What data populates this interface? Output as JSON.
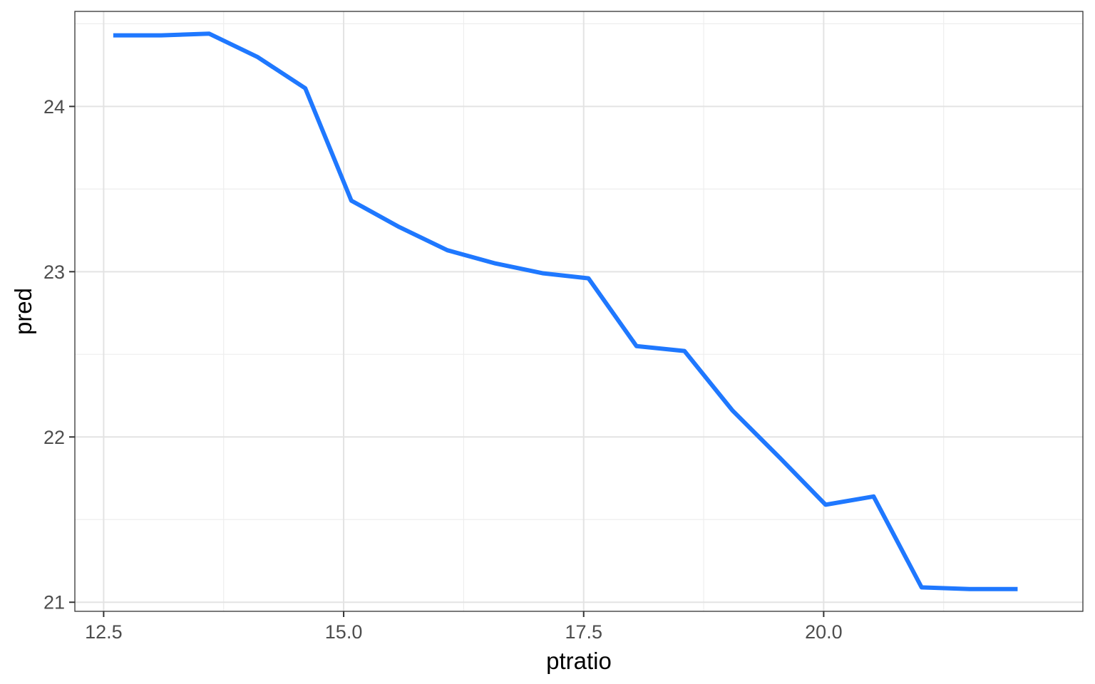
{
  "chart_data": {
    "type": "line",
    "title": "",
    "xlabel": "ptratio",
    "ylabel": "pred",
    "xlim": [
      12.2,
      22.7
    ],
    "ylim": [
      20.945,
      24.575
    ],
    "x_ticks": [
      12.5,
      15.0,
      17.5,
      20.0
    ],
    "x_tick_labels": [
      "12.5",
      "15.0",
      "17.5",
      "20.0"
    ],
    "x_minor_ticks": [
      13.75,
      16.25,
      18.75,
      21.25
    ],
    "y_ticks": [
      21,
      22,
      23,
      24
    ],
    "y_tick_labels": [
      "21",
      "22",
      "23",
      "24"
    ],
    "y_minor_ticks": [
      21.5,
      22.5,
      23.5,
      24.5
    ],
    "grid": true,
    "legend": "none",
    "series": [
      {
        "color": "#1f78ff",
        "x": [
          12.6,
          13.1,
          13.6,
          14.1,
          14.6,
          15.08,
          15.58,
          16.08,
          16.58,
          17.08,
          17.55,
          18.05,
          18.55,
          19.05,
          19.55,
          20.02,
          20.52,
          21.02,
          21.52,
          22.02
        ],
        "y": [
          24.43,
          24.43,
          24.44,
          24.3,
          24.11,
          23.43,
          23.27,
          23.13,
          23.05,
          22.99,
          22.96,
          22.55,
          22.52,
          22.16,
          21.87,
          21.59,
          21.64,
          21.09,
          21.08,
          21.08
        ]
      }
    ]
  }
}
